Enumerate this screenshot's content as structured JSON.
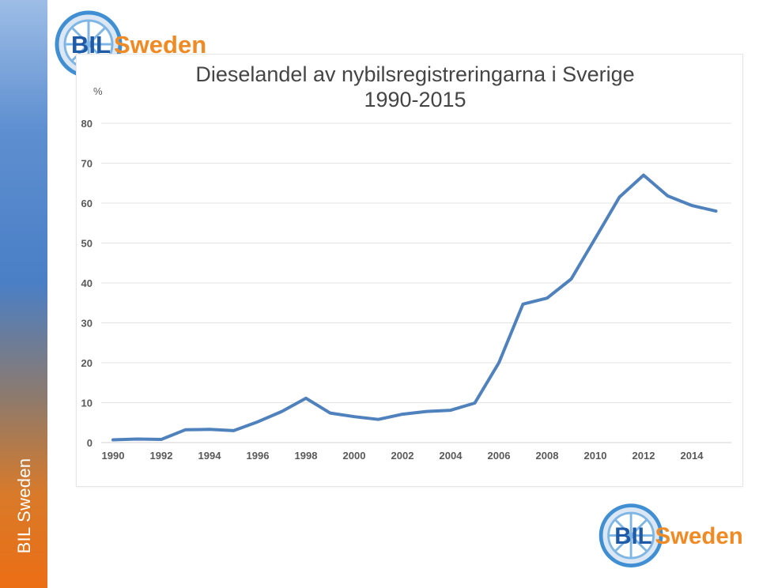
{
  "side_band": {
    "text": "BIL Sweden"
  },
  "logos": {
    "top": {
      "text_left": "BIL",
      "text_right": "Sweden"
    },
    "bottom": {
      "text_left": "BIL",
      "text_right": "Sweden"
    }
  },
  "colors": {
    "line": "#4f81bd",
    "grid": "#e3e3e3",
    "logo_blue": "#1f5aa6",
    "logo_orange": "#f08a24",
    "band_orange": "#ec6e14"
  },
  "chart_data": {
    "type": "line",
    "title": "Dieselandel av nybilsregistreringarna i Sverige",
    "subtitle": "1990-2015",
    "ylabel": "%",
    "xlabel": "",
    "ylim": [
      0,
      80
    ],
    "yticks": [
      "0",
      "10",
      "20",
      "30",
      "40",
      "50",
      "60",
      "70",
      "80"
    ],
    "xticks": [
      "1990",
      "1992",
      "1994",
      "1996",
      "1998",
      "2000",
      "2002",
      "2004",
      "2006",
      "2008",
      "2010",
      "2012",
      "2014"
    ],
    "grid": true,
    "series": [
      {
        "x": [
          1990,
          1991,
          1992,
          1993,
          1994,
          1995,
          1996,
          1997,
          1998,
          1999,
          2000,
          2001,
          2002,
          2003,
          2004,
          2005,
          2006,
          2007,
          2008,
          2009,
          2010,
          2011,
          2012,
          2013,
          2014,
          2015
        ],
        "values": [
          0.7,
          0.9,
          0.8,
          3.2,
          3.3,
          3.0,
          5.2,
          7.8,
          11.1,
          7.4,
          6.5,
          5.8,
          7.1,
          7.8,
          8.1,
          9.9,
          20.0,
          34.7,
          36.2,
          41.0,
          51.2,
          61.5,
          67.0,
          61.8,
          59.4,
          58.0
        ]
      }
    ]
  }
}
